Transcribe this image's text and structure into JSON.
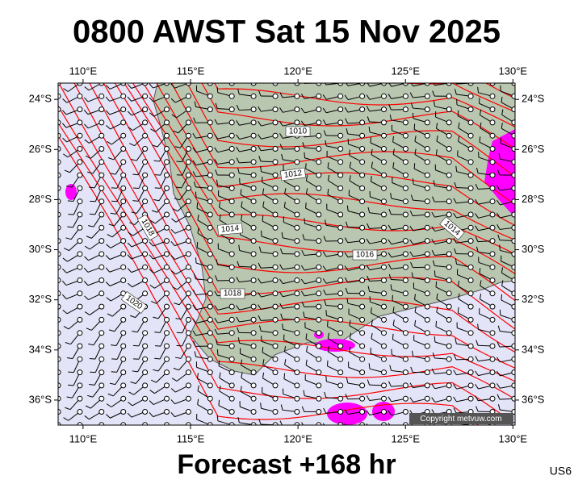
{
  "title": "0800 AWST Sat 15 Nov 2025",
  "footer": "Forecast +168 hr",
  "code": "US6",
  "copyright": "Copyright metvuw.com",
  "map": {
    "xlim": [
      108.84,
      130.1
    ],
    "ylim": [
      23.35,
      37.0
    ],
    "lon_ticks": [
      {
        "value": 110,
        "label": "110°E"
      },
      {
        "value": 115,
        "label": "115°E"
      },
      {
        "value": 120,
        "label": "120°E"
      },
      {
        "value": 125,
        "label": "125°E"
      },
      {
        "value": 130,
        "label": "130°E"
      }
    ],
    "lat_ticks": [
      {
        "value": 24,
        "label": "24°S"
      },
      {
        "value": 26,
        "label": "26°S"
      },
      {
        "value": 28,
        "label": "28°S"
      },
      {
        "value": 30,
        "label": "30°S"
      },
      {
        "value": 32,
        "label": "32°S"
      },
      {
        "value": 34,
        "label": "34°S"
      },
      {
        "value": 36,
        "label": "36°S"
      }
    ],
    "isobar_labels": [
      "1010",
      "1012",
      "1014",
      "1014",
      "1016",
      "1018",
      "1018",
      "1020"
    ]
  }
}
